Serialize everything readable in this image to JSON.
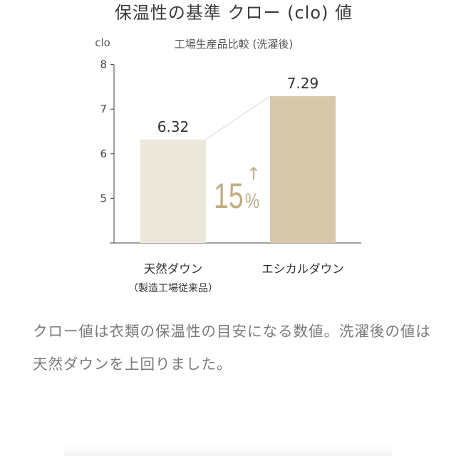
{
  "chart_data": {
    "type": "bar",
    "title": "保温性の基準 クロー (clo) 値",
    "subtitle": "工場生産品比較 (洗濯後)",
    "ylabel": "clo",
    "xlabel": "",
    "ylim": [
      4,
      8
    ],
    "yticks": [
      5,
      6,
      7,
      8
    ],
    "categories": [
      "天然ダウン",
      "エシカルダウン"
    ],
    "category_notes": [
      "（製造工場従来品）",
      ""
    ],
    "values": [
      6.32,
      7.29
    ],
    "data_labels": [
      "6.32",
      "7.29"
    ],
    "bar_colors": [
      "#ece8dc",
      "#d6c8a8"
    ],
    "annotation": {
      "number": "15",
      "percent": "%",
      "arrow": "↑",
      "color": "#c2ae86"
    },
    "grid": false,
    "legend": "none"
  },
  "description": "クロー値は衣類の保温性の目安になる数値。洗濯後の値は天然ダウンを上回りました。"
}
